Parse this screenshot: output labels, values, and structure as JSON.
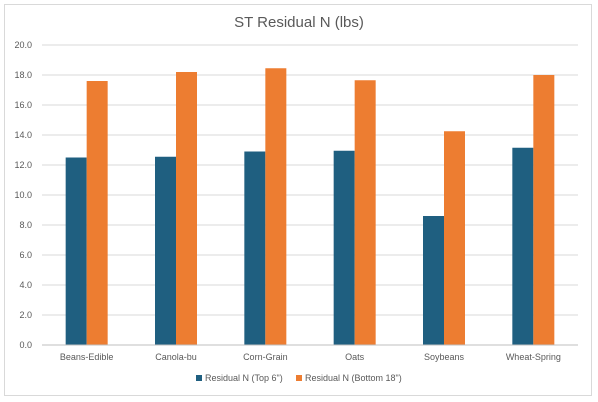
{
  "chart_data": {
    "type": "bar",
    "title": "ST Residual N (lbs)",
    "xlabel": "",
    "ylabel": "",
    "categories": [
      "Beans-Edible",
      "Canola-bu",
      "Corn-Grain",
      "Oats",
      "Soybeans",
      "Wheat-Spring"
    ],
    "series": [
      {
        "name": "Residual N (Top 6\")",
        "color": "#1f5f80",
        "values": [
          12.5,
          12.55,
          12.9,
          12.95,
          8.6,
          13.15
        ]
      },
      {
        "name": "Residual N (Bottom 18\")",
        "color": "#ed7d31",
        "values": [
          17.6,
          18.2,
          18.45,
          17.65,
          14.25,
          18.0
        ]
      }
    ],
    "ylim": [
      0,
      20
    ],
    "yticks": [
      "0.0",
      "2.0",
      "4.0",
      "6.0",
      "8.0",
      "10.0",
      "12.0",
      "14.0",
      "16.0",
      "18.0",
      "20.0"
    ],
    "grid": true,
    "legend_position": "bottom"
  }
}
